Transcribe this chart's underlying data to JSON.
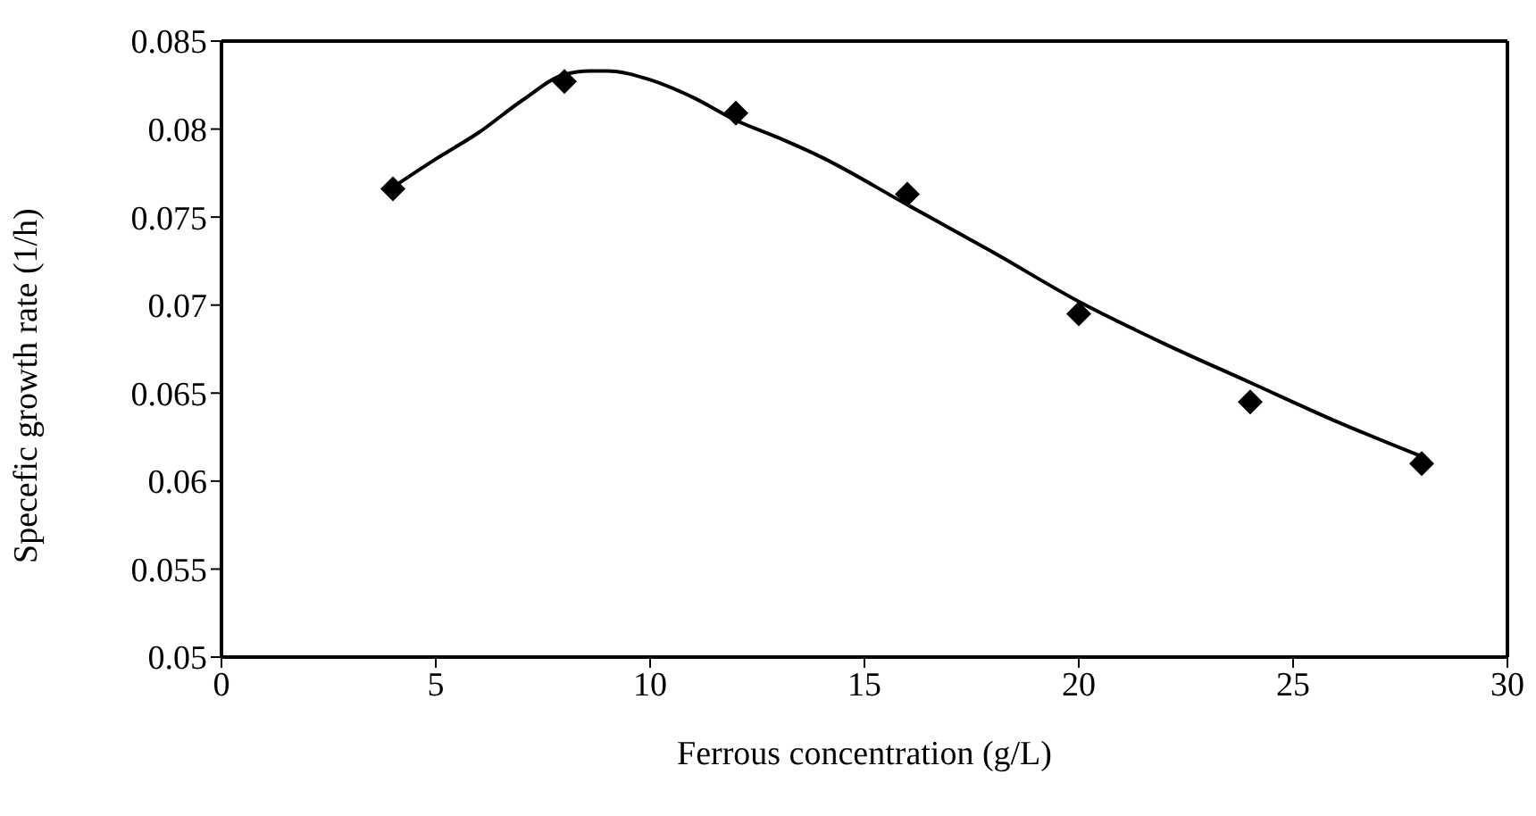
{
  "chart_data": {
    "type": "scatter",
    "xlabel": "Ferrous  concentration (g/L)",
    "ylabel": "Specefic growth rate (1/h)",
    "x": [
      4,
      8,
      12,
      16,
      20,
      24,
      28
    ],
    "series": [
      {
        "type": "scatter",
        "color": "#000000",
        "marker": "diamond",
        "values": [
          0.0766,
          0.0827,
          0.0809,
          0.0763,
          0.0695,
          0.0645,
          0.061
        ]
      },
      {
        "type": "line",
        "color": "#000000",
        "marker": "none",
        "line_style": "solid",
        "x": [
          4,
          5,
          6,
          7,
          8,
          8.6,
          9,
          10,
          11,
          12,
          13,
          14,
          16,
          18,
          20,
          22,
          24,
          26,
          28
        ],
        "values": [
          0.0767,
          0.0783,
          0.0798,
          0.0816,
          0.0831,
          0.0833,
          0.0833,
          0.0828,
          0.0818,
          0.0805,
          0.0795,
          0.0784,
          0.0757,
          0.073,
          0.0702,
          0.0678,
          0.0656,
          0.0634,
          0.0614
        ]
      }
    ],
    "xlim": [
      0,
      30
    ],
    "xticks": [
      0,
      5,
      10,
      15,
      20,
      25,
      30
    ],
    "ylim": [
      0.05,
      0.085
    ],
    "yticks": [
      0.05,
      0.055,
      0.06,
      0.065,
      0.07,
      0.075,
      0.08,
      0.085
    ]
  }
}
